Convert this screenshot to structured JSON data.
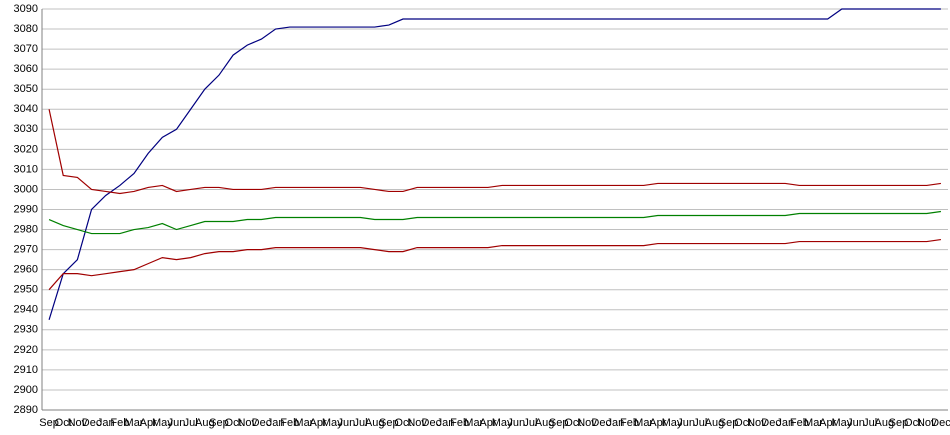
{
  "chart_data": {
    "type": "line",
    "categories": [
      "Sep",
      "Oct",
      "Nov",
      "Dec",
      "Jan",
      "Feb",
      "Mar",
      "Apr",
      "May",
      "Jun",
      "Jul",
      "Aug",
      "Sep",
      "Oct",
      "Nov",
      "Dec",
      "Jan",
      "Feb",
      "Mar",
      "Apr",
      "May",
      "Jun",
      "Jul",
      "Aug",
      "Sep",
      "Oct",
      "Nov",
      "Dec",
      "Jan",
      "Feb",
      "Mar",
      "Apr",
      "May",
      "Jun",
      "Jul",
      "Aug",
      "Sep",
      "Oct",
      "Nov",
      "Dec",
      "Jan",
      "Feb",
      "Mar",
      "Apr",
      "May",
      "Jun",
      "Jul",
      "Aug",
      "Sep",
      "Oct",
      "Nov",
      "Dec",
      "Jan",
      "Feb",
      "Mar",
      "Apr",
      "May",
      "Jun",
      "Jul",
      "Aug",
      "Sep",
      "Oct",
      "Nov",
      "Dec"
    ],
    "series": [
      {
        "color": "#000080",
        "values": [
          2935,
          2958,
          2965,
          2990,
          2997,
          3002,
          3008,
          3018,
          3026,
          3030,
          3040,
          3050,
          3057,
          3067,
          3072,
          3075,
          3080,
          3081,
          3081,
          3081,
          3081,
          3081,
          3081,
          3081,
          3082,
          3085,
          3085,
          3085,
          3085,
          3085,
          3085,
          3085,
          3085,
          3085,
          3085,
          3085,
          3085,
          3085,
          3085,
          3085,
          3085,
          3085,
          3085,
          3085,
          3085,
          3085,
          3085,
          3085,
          3085,
          3085,
          3085,
          3085,
          3085,
          3085,
          3085,
          3085,
          3090,
          3090,
          3090,
          3090,
          3090,
          3090,
          3090,
          3090
        ]
      },
      {
        "color": "#a00000",
        "values": [
          3040,
          3007,
          3006,
          3000,
          2999,
          2998,
          2999,
          3001,
          3002,
          2999,
          3000,
          3001,
          3001,
          3000,
          3000,
          3000,
          3001,
          3001,
          3001,
          3001,
          3001,
          3001,
          3001,
          3000,
          2999,
          2999,
          3001,
          3001,
          3001,
          3001,
          3001,
          3001,
          3002,
          3002,
          3002,
          3002,
          3002,
          3002,
          3002,
          3002,
          3002,
          3002,
          3002,
          3003,
          3003,
          3003,
          3003,
          3003,
          3003,
          3003,
          3003,
          3003,
          3003,
          3002,
          3002,
          3002,
          3002,
          3002,
          3002,
          3002,
          3002,
          3002,
          3002,
          3003
        ]
      },
      {
        "color": "#008000",
        "values": [
          2985,
          2982,
          2980,
          2978,
          2978,
          2978,
          2980,
          2981,
          2983,
          2980,
          2982,
          2984,
          2984,
          2984,
          2985,
          2985,
          2986,
          2986,
          2986,
          2986,
          2986,
          2986,
          2986,
          2985,
          2985,
          2985,
          2986,
          2986,
          2986,
          2986,
          2986,
          2986,
          2986,
          2986,
          2986,
          2986,
          2986,
          2986,
          2986,
          2986,
          2986,
          2986,
          2986,
          2987,
          2987,
          2987,
          2987,
          2987,
          2987,
          2987,
          2987,
          2987,
          2987,
          2988,
          2988,
          2988,
          2988,
          2988,
          2988,
          2988,
          2988,
          2988,
          2988,
          2989
        ]
      },
      {
        "color": "#a00000",
        "values": [
          2950,
          2958,
          2958,
          2957,
          2958,
          2959,
          2960,
          2963,
          2966,
          2965,
          2966,
          2968,
          2969,
          2969,
          2970,
          2970,
          2971,
          2971,
          2971,
          2971,
          2971,
          2971,
          2971,
          2970,
          2969,
          2969,
          2971,
          2971,
          2971,
          2971,
          2971,
          2971,
          2972,
          2972,
          2972,
          2972,
          2972,
          2972,
          2972,
          2972,
          2972,
          2972,
          2972,
          2973,
          2973,
          2973,
          2973,
          2973,
          2973,
          2973,
          2973,
          2973,
          2973,
          2974,
          2974,
          2974,
          2974,
          2974,
          2974,
          2974,
          2974,
          2974,
          2974,
          2975
        ]
      }
    ],
    "ylim": [
      2890,
      3090
    ],
    "yticks": [
      2890,
      2900,
      2910,
      2920,
      2930,
      2940,
      2950,
      2960,
      2970,
      2980,
      2990,
      3000,
      3010,
      3020,
      3030,
      3040,
      3050,
      3060,
      3070,
      3080,
      3090
    ],
    "grid": true
  }
}
